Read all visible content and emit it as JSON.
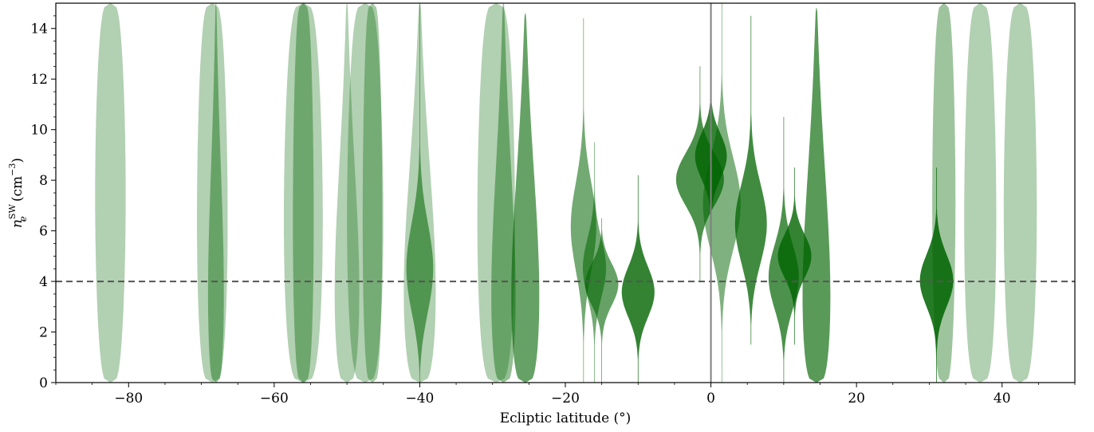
{
  "chart_data": {
    "type": "violin",
    "xlabel": "Ecliptic latitude (°)",
    "ylabel": {
      "base": "n",
      "sub": "e",
      "sup": "SW",
      "unit_base": "(cm",
      "unit_sup": "−3",
      "unit_close": ")"
    },
    "xlim": [
      -90,
      50
    ],
    "ylim": [
      0,
      15
    ],
    "xticks": [
      -80,
      -60,
      -40,
      -20,
      0,
      20,
      40
    ],
    "xtick_labels": [
      "−80",
      "−60",
      "−40",
      "−20",
      "0",
      "20",
      "40"
    ],
    "yticks": [
      0,
      2,
      4,
      6,
      8,
      10,
      12,
      14
    ],
    "ytick_labels": [
      "0",
      "2",
      "4",
      "6",
      "8",
      "10",
      "12",
      "14"
    ],
    "reference_lines": [
      {
        "orientation": "horizontal",
        "value": 4,
        "style": "dashed",
        "color": "#555555"
      },
      {
        "orientation": "vertical",
        "value": 0,
        "style": "solid",
        "color": "#808080"
      }
    ],
    "color": "#006400",
    "violins": [
      {
        "x": -82.5,
        "lo": 0,
        "hi": 15,
        "peak": 7,
        "halfwidth": 2.1,
        "opacity": 0.3,
        "shape": "uniform"
      },
      {
        "x": -68.5,
        "lo": 0,
        "hi": 15,
        "peak": 1,
        "halfwidth": 2.2,
        "opacity": 0.3,
        "shape": "uniform"
      },
      {
        "x": -68,
        "lo": 0,
        "hi": 15,
        "peak": 0.8,
        "halfwidth": 1.3,
        "opacity": 0.42,
        "shape": "bottom"
      },
      {
        "x": -56,
        "lo": 0,
        "hi": 15,
        "peak": 0.6,
        "halfwidth": 2.8,
        "opacity": 0.3,
        "shape": "uniform"
      },
      {
        "x": -56,
        "lo": 0,
        "hi": 15,
        "peak": 0.6,
        "halfwidth": 1.5,
        "opacity": 0.38,
        "shape": "uniform"
      },
      {
        "x": -50,
        "lo": 0,
        "hi": 15,
        "peak": 1,
        "halfwidth": 2.0,
        "opacity": 0.3,
        "shape": "bottom"
      },
      {
        "x": -47.5,
        "lo": 0,
        "hi": 15,
        "peak": 1,
        "halfwidth": 2.6,
        "opacity": 0.3,
        "shape": "uniform"
      },
      {
        "x": -46.5,
        "lo": 0,
        "hi": 15,
        "peak": 1,
        "halfwidth": 1.4,
        "opacity": 0.34,
        "shape": "uniform"
      },
      {
        "x": -40,
        "lo": 0,
        "hi": 15,
        "peak": 1,
        "halfwidth": 2.6,
        "opacity": 0.3,
        "shape": "bottom"
      },
      {
        "x": -40,
        "lo": 0,
        "hi": 15,
        "peak": 4,
        "halfwidth": 2.3,
        "opacity": 0.55,
        "shape": "peak"
      },
      {
        "x": -29.5,
        "lo": 0,
        "hi": 15,
        "peak": 1,
        "halfwidth": 2.7,
        "opacity": 0.3,
        "shape": "uniform"
      },
      {
        "x": -28.5,
        "lo": 0,
        "hi": 15,
        "peak": 0.8,
        "halfwidth": 2.0,
        "opacity": 0.42,
        "shape": "bottom"
      },
      {
        "x": -25.5,
        "lo": 0,
        "hi": 14.6,
        "peak": 0.8,
        "halfwidth": 2.3,
        "opacity": 0.6,
        "shape": "bottom"
      },
      {
        "x": -17.5,
        "lo": 0,
        "hi": 14.4,
        "peak": 6,
        "halfwidth": 1.8,
        "opacity": 0.55,
        "shape": "peak"
      },
      {
        "x": -16,
        "lo": 0,
        "hi": 9.5,
        "peak": 4.5,
        "halfwidth": 1.6,
        "opacity": 0.55,
        "shape": "peak"
      },
      {
        "x": -15,
        "lo": 0,
        "hi": 6.5,
        "peak": 4,
        "halfwidth": 2.4,
        "opacity": 0.6,
        "shape": "peak"
      },
      {
        "x": -10,
        "lo": 0,
        "hi": 8.2,
        "peak": 3.5,
        "halfwidth": 2.3,
        "opacity": 0.8,
        "shape": "peak"
      },
      {
        "x": -1.5,
        "lo": 4,
        "hi": 12.5,
        "peak": 8,
        "halfwidth": 3.3,
        "opacity": 0.7,
        "shape": "peak"
      },
      {
        "x": 0,
        "lo": 5,
        "hi": 12.3,
        "peak": 9,
        "halfwidth": 2.2,
        "opacity": 0.8,
        "shape": "peak"
      },
      {
        "x": 1.5,
        "lo": 0,
        "hi": 15,
        "peak": 7,
        "halfwidth": 2.6,
        "opacity": 0.5,
        "shape": "peak"
      },
      {
        "x": 5.5,
        "lo": 1.5,
        "hi": 14.5,
        "peak": 6,
        "halfwidth": 2.4,
        "opacity": 0.75,
        "shape": "peak"
      },
      {
        "x": 10,
        "lo": 0,
        "hi": 10.5,
        "peak": 4,
        "halfwidth": 2.2,
        "opacity": 0.7,
        "shape": "peak"
      },
      {
        "x": 11.5,
        "lo": 1.5,
        "hi": 8.5,
        "peak": 5,
        "halfwidth": 2.3,
        "opacity": 0.8,
        "shape": "peak"
      },
      {
        "x": 14.5,
        "lo": 0,
        "hi": 14.8,
        "peak": 0.7,
        "halfwidth": 2.3,
        "opacity": 0.65,
        "shape": "bottom"
      },
      {
        "x": 31,
        "lo": 0,
        "hi": 8.5,
        "peak": 4,
        "halfwidth": 2.3,
        "opacity": 0.85,
        "shape": "peak"
      },
      {
        "x": 32,
        "lo": 0,
        "hi": 15,
        "peak": 6,
        "halfwidth": 1.6,
        "opacity": 0.38,
        "shape": "uniform"
      },
      {
        "x": 37,
        "lo": 0,
        "hi": 15,
        "peak": 1,
        "halfwidth": 2.3,
        "opacity": 0.3,
        "shape": "uniform"
      },
      {
        "x": 42.5,
        "lo": 0,
        "hi": 15,
        "peak": 4,
        "halfwidth": 2.3,
        "opacity": 0.3,
        "shape": "uniform"
      }
    ]
  }
}
